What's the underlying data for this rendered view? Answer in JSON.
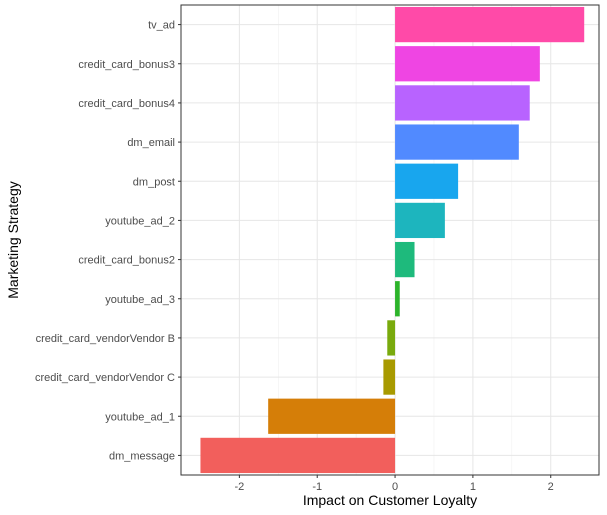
{
  "chart_data": {
    "type": "bar",
    "orientation": "horizontal",
    "xlabel": "Impact on Customer Loyalty",
    "ylabel": "Marketing Strategy",
    "xlim": [
      -2.75,
      2.62
    ],
    "x_ticks": [
      -2,
      -1,
      0,
      1,
      2
    ],
    "grid": true,
    "legend": "none",
    "bars": [
      {
        "category": "tv_ad",
        "value": 2.43,
        "color": "#FF4AA8"
      },
      {
        "category": "credit_card_bonus3",
        "value": 1.86,
        "color": "#EF45E3"
      },
      {
        "category": "credit_card_bonus4",
        "value": 1.73,
        "color": "#B863FF"
      },
      {
        "category": "dm_email",
        "value": 1.59,
        "color": "#518AFF"
      },
      {
        "category": "dm_post",
        "value": 0.81,
        "color": "#18A6EE"
      },
      {
        "category": "youtube_ad_2",
        "value": 0.64,
        "color": "#1DB5BE"
      },
      {
        "category": "credit_card_bonus2",
        "value": 0.25,
        "color": "#1EBA7C"
      },
      {
        "category": "youtube_ad_3",
        "value": 0.06,
        "color": "#2CB42A"
      },
      {
        "category": "credit_card_vendorVendor B",
        "value": -0.1,
        "color": "#79AA0D"
      },
      {
        "category": "credit_card_vendorVendor C",
        "value": -0.15,
        "color": "#A89A00"
      },
      {
        "category": "youtube_ad_1",
        "value": -1.63,
        "color": "#D57E08"
      },
      {
        "category": "dm_message",
        "value": -2.5,
        "color": "#F25F5C"
      }
    ]
  }
}
